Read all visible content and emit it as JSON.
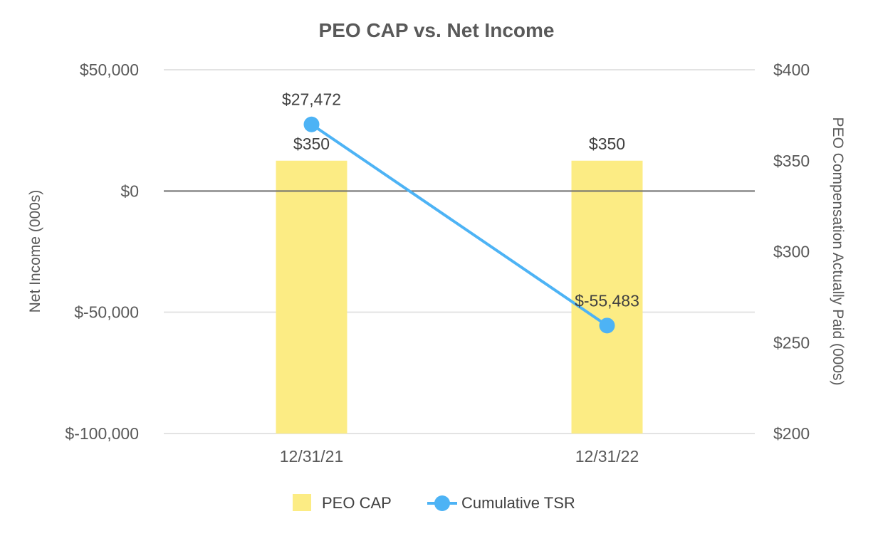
{
  "chart_data": {
    "type": "bar",
    "title": "PEO CAP vs. Net Income",
    "categories": [
      "12/31/21",
      "12/31/22"
    ],
    "left_axis": {
      "label": "Net Income (000s)",
      "range": [
        -100000,
        50000
      ],
      "ticks": [
        50000,
        0,
        -50000,
        -100000
      ],
      "tick_labels": [
        "$50,000",
        "$0",
        "$-50,000",
        "$-100,000"
      ]
    },
    "right_axis": {
      "label": "PEO Compensation Actually Paid (000s)",
      "range": [
        200,
        400
      ],
      "ticks": [
        400,
        350,
        300,
        250,
        200
      ],
      "tick_labels": [
        "$400",
        "$350",
        "$300",
        "$250",
        "$200"
      ]
    },
    "series": [
      {
        "name": "PEO CAP",
        "type": "bar",
        "axis": "right",
        "values": [
          350,
          350
        ],
        "value_labels": [
          "$350",
          "$350"
        ],
        "color": "#fcec84"
      },
      {
        "name": "Cumulative TSR",
        "type": "line",
        "axis": "left",
        "values": [
          27472,
          -55483
        ],
        "value_labels": [
          "$27,472",
          "$-55,483"
        ],
        "color": "#4db3f5"
      }
    ],
    "legend": [
      "PEO CAP",
      "Cumulative TSR"
    ],
    "grid": true,
    "legend_position": "bottom"
  }
}
